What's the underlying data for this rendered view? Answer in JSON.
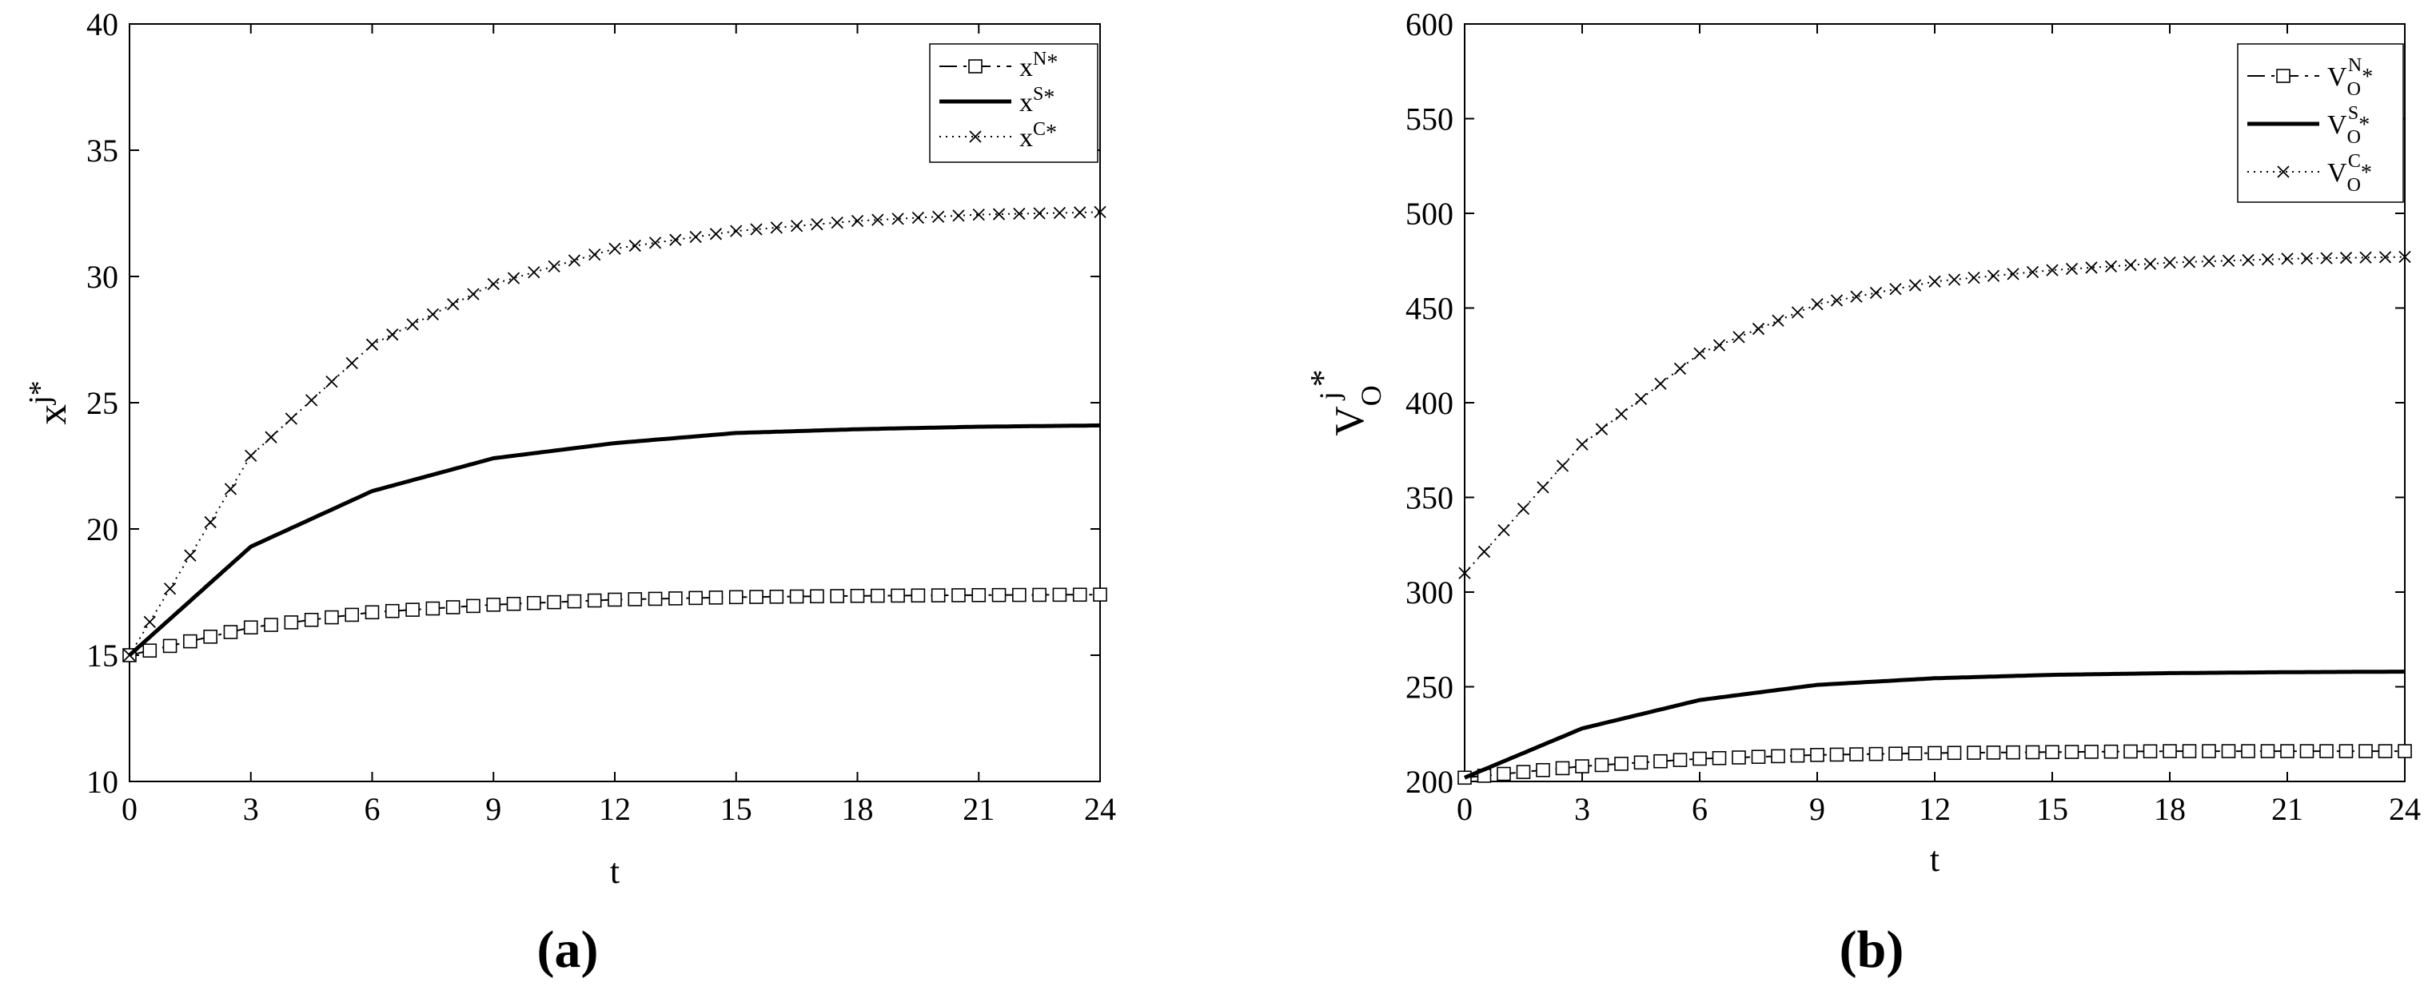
{
  "figure": {
    "panels": [
      {
        "caption": "(a)",
        "ylabel_base": "x",
        "ylabel_sup": "j*",
        "xlabel": "t",
        "legend": [
          {
            "base": "x",
            "sup": "N",
            "star": "*"
          },
          {
            "base": "x",
            "sup": "S",
            "star": "*"
          },
          {
            "base": "x",
            "sup": "C",
            "star": "*"
          }
        ]
      },
      {
        "caption": "(b)",
        "ylabel_base": "V",
        "ylabel_sub": "O",
        "ylabel_sup": "j",
        "ylabel_star": "*",
        "xlabel": "t",
        "legend": [
          {
            "base": "V",
            "sub": "O",
            "sup": "N",
            "star": "*"
          },
          {
            "base": "V",
            "sub": "O",
            "sup": "S",
            "star": "*"
          },
          {
            "base": "V",
            "sub": "O",
            "sup": "C",
            "star": "*"
          }
        ]
      }
    ]
  },
  "chart_data": [
    {
      "type": "line",
      "xlim": [
        0,
        24
      ],
      "ylim": [
        10,
        40
      ],
      "xticks": [
        0,
        3,
        6,
        9,
        12,
        15,
        18,
        21,
        24
      ],
      "yticks": [
        10,
        15,
        20,
        25,
        30,
        35,
        40
      ],
      "grid": false,
      "legend_position": "top-right",
      "series": [
        {
          "marker": "square",
          "linestyle": "dashdot",
          "x": [
            0,
            3,
            6,
            9,
            12,
            15,
            18,
            21,
            24
          ],
          "y": [
            15,
            16.1,
            16.7,
            17.0,
            17.2,
            17.3,
            17.35,
            17.38,
            17.4
          ]
        },
        {
          "marker": "none",
          "linestyle": "solid",
          "x": [
            0,
            3,
            6,
            9,
            12,
            15,
            18,
            21,
            24
          ],
          "y": [
            15,
            19.3,
            21.5,
            22.8,
            23.4,
            23.8,
            23.95,
            24.05,
            24.1
          ]
        },
        {
          "marker": "x",
          "linestyle": "dotted",
          "x": [
            0,
            3,
            6,
            9,
            12,
            15,
            18,
            21,
            24
          ],
          "y": [
            15,
            22.9,
            27.3,
            29.7,
            31.1,
            31.8,
            32.2,
            32.45,
            32.55
          ]
        }
      ]
    },
    {
      "type": "line",
      "xlim": [
        0,
        24
      ],
      "ylim": [
        200,
        600
      ],
      "xticks": [
        0,
        3,
        6,
        9,
        12,
        15,
        18,
        21,
        24
      ],
      "yticks": [
        200,
        250,
        300,
        350,
        400,
        450,
        500,
        550,
        600
      ],
      "grid": false,
      "legend_position": "top-right",
      "series": [
        {
          "marker": "square",
          "linestyle": "dashdot",
          "x": [
            0,
            3,
            6,
            9,
            12,
            15,
            18,
            21,
            24
          ],
          "y": [
            202,
            208,
            212,
            214,
            215,
            215.5,
            216,
            216,
            216
          ]
        },
        {
          "marker": "none",
          "linestyle": "solid",
          "x": [
            0,
            3,
            6,
            9,
            12,
            15,
            18,
            21,
            24
          ],
          "y": [
            202,
            228,
            243,
            251,
            254.5,
            256.3,
            257.2,
            257.7,
            258
          ]
        },
        {
          "marker": "x",
          "linestyle": "dotted",
          "x": [
            0,
            3,
            6,
            9,
            12,
            15,
            18,
            21,
            24
          ],
          "y": [
            310,
            378,
            426,
            452,
            464,
            470,
            474,
            476,
            477
          ]
        }
      ]
    }
  ]
}
